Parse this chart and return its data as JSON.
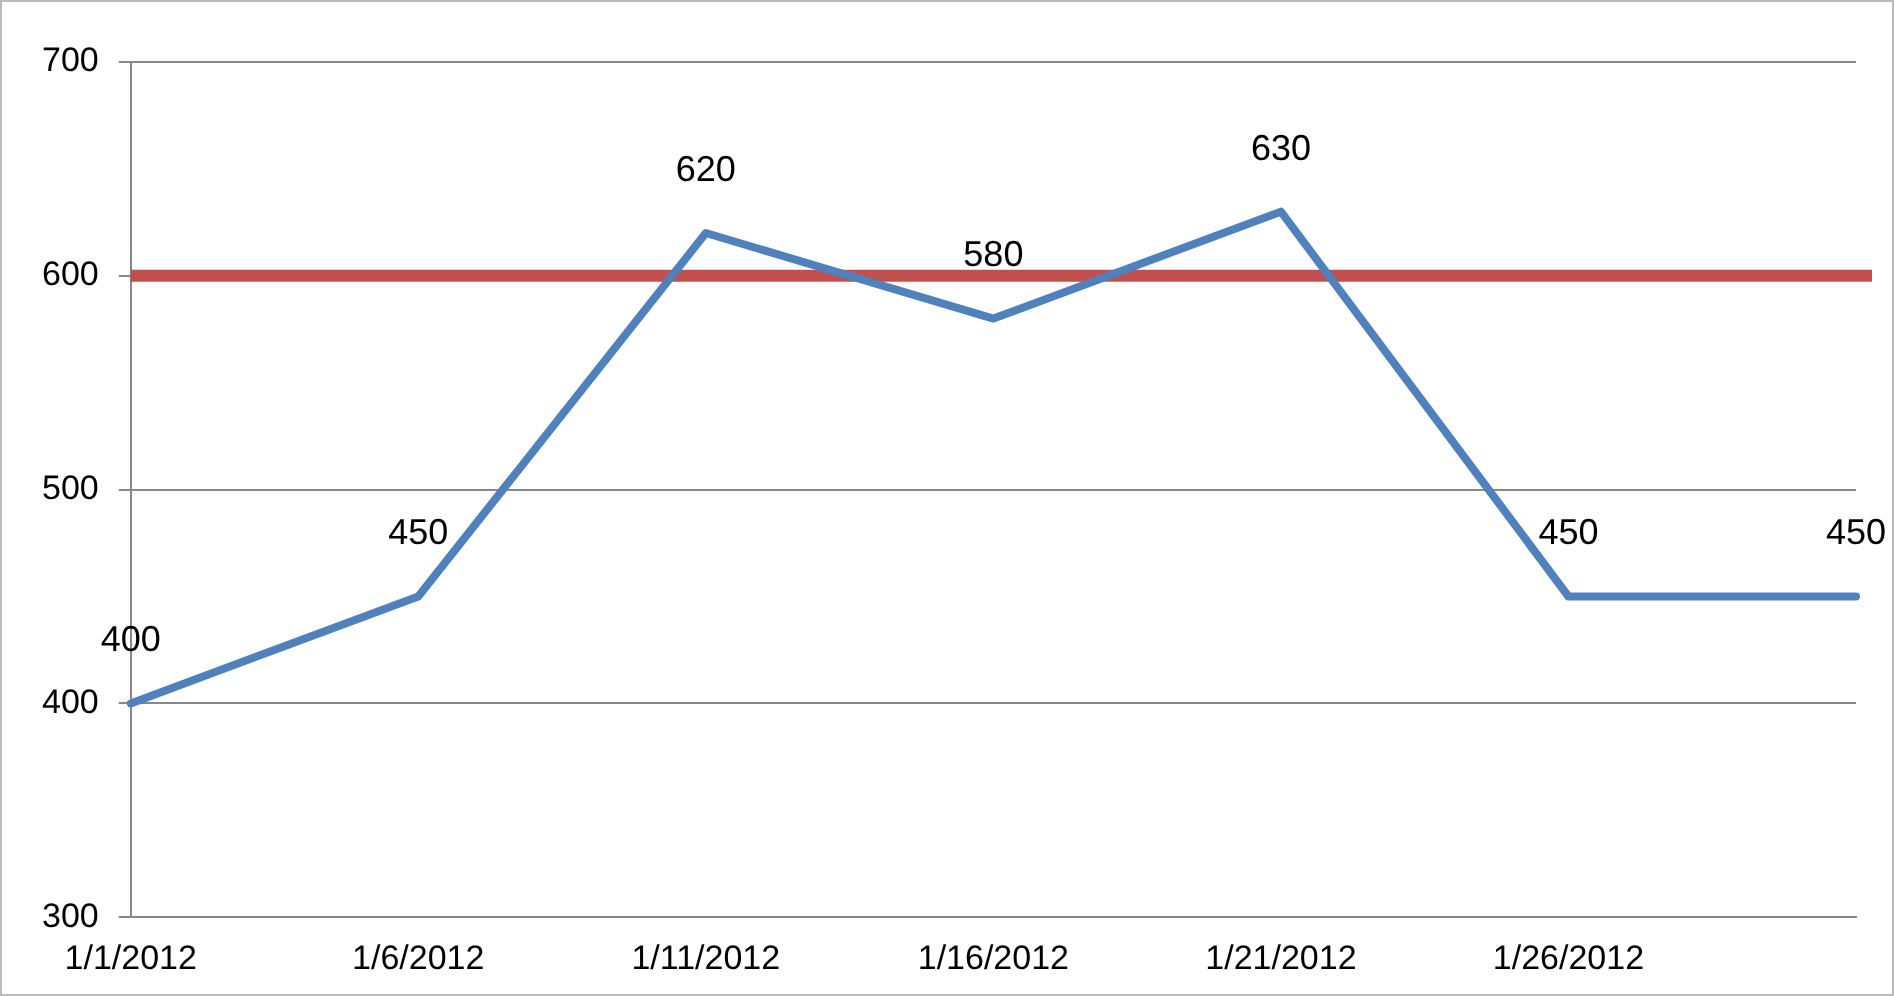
{
  "chart_data": {
    "type": "line",
    "categories": [
      "1/1/2012",
      "1/6/2012",
      "1/11/2012",
      "1/16/2012",
      "1/21/2012",
      "1/26/2012",
      null
    ],
    "series": [
      {
        "color": "#4f81bd",
        "values": [
          400,
          450,
          620,
          580,
          630,
          450,
          450
        ]
      }
    ],
    "ylim": [
      300,
      700
    ],
    "yticks": [
      300,
      400,
      500,
      600,
      700
    ],
    "ref_lines": [
      {
        "axis": "y",
        "value": 600,
        "color": "#c0504d"
      }
    ],
    "grid": "y",
    "legend": false,
    "marker": "none",
    "line_style": "solid",
    "data_labels": true
  }
}
